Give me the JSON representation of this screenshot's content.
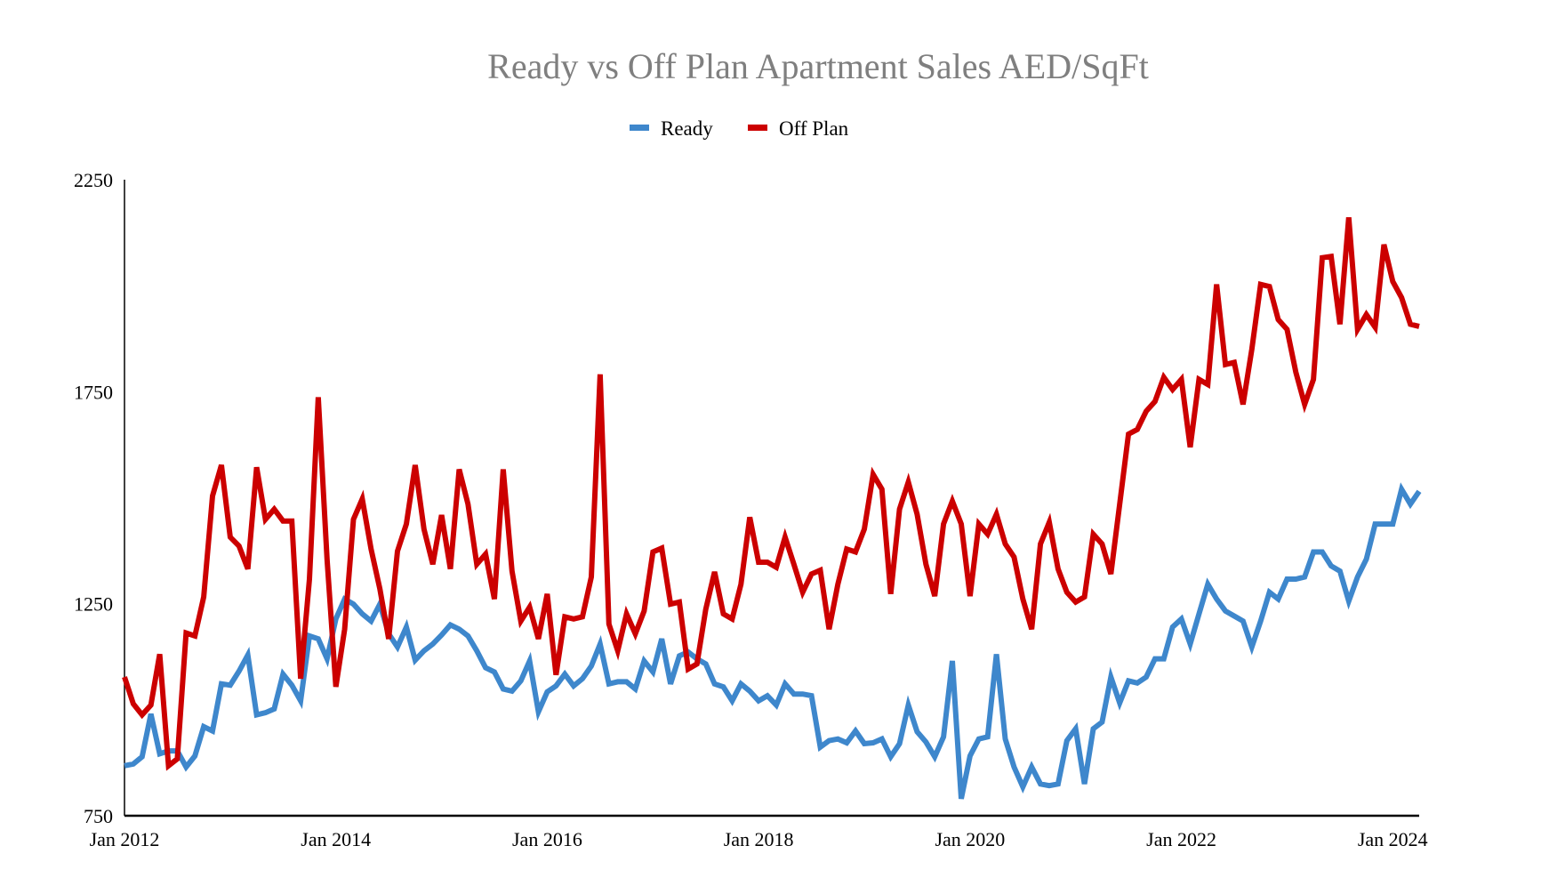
{
  "chart_data": {
    "type": "line",
    "title": "Ready vs Off Plan Apartment Sales AED/SqFt",
    "xlabel": "",
    "ylabel": "",
    "x_start": "Jan 2012",
    "x_frequency": "monthly",
    "x_tick_labels": [
      "Jan 2012",
      "Jan 2014",
      "Jan 2016",
      "Jan 2018",
      "Jan 2020",
      "Jan 2022",
      "Jan 2024"
    ],
    "x_tick_month_index": [
      0,
      24,
      48,
      72,
      96,
      120,
      144
    ],
    "x_range_months": [
      0,
      147
    ],
    "y_tick_labels": [
      "750",
      "1250",
      "1750",
      "2250"
    ],
    "y_ticks": [
      750,
      1250,
      1750,
      2250
    ],
    "ylim": [
      750,
      2250
    ],
    "grid": false,
    "legend_position": "top-center",
    "series": [
      {
        "name": "Ready",
        "color": "#3e87cc",
        "values": [
          868,
          872,
          889,
          990,
          896,
          903,
          903,
          865,
          891,
          960,
          950,
          1061,
          1058,
          1091,
          1129,
          988,
          993,
          1002,
          1084,
          1058,
          1021,
          1174,
          1167,
          1120,
          1214,
          1261,
          1249,
          1226,
          1209,
          1249,
          1179,
          1148,
          1195,
          1117,
          1139,
          1155,
          1176,
          1200,
          1190,
          1174,
          1139,
          1099,
          1089,
          1049,
          1044,
          1068,
          1115,
          995,
          1042,
          1056,
          1084,
          1056,
          1073,
          1103,
          1155,
          1061,
          1066,
          1066,
          1049,
          1115,
          1089,
          1167,
          1061,
          1127,
          1136,
          1120,
          1108,
          1061,
          1054,
          1021,
          1061,
          1044,
          1021,
          1033,
          1011,
          1061,
          1037,
          1037,
          1033,
          912,
          927,
          931,
          922,
          950,
          920,
          922,
          931,
          889,
          920,
          1011,
          948,
          924,
          889,
          936,
          1115,
          790,
          891,
          931,
          936,
          1131,
          931,
          865,
          818,
          865,
          825,
          821,
          825,
          927,
          955,
          825,
          955,
          971,
          1077,
          1016,
          1068,
          1063,
          1077,
          1120,
          1120,
          1195,
          1214,
          1155,
          1226,
          1296,
          1261,
          1233,
          1221,
          1209,
          1148,
          1209,
          1277,
          1261,
          1308,
          1308,
          1313,
          1372,
          1372,
          1339,
          1327,
          1256,
          1313,
          1355,
          1438,
          1438,
          1438,
          1520,
          1485,
          1515
        ]
      },
      {
        "name": "Off Plan",
        "color": "#cc0000",
        "values": [
          1077,
          1014,
          988,
          1011,
          1131,
          868,
          884,
          1181,
          1174,
          1266,
          1504,
          1577,
          1407,
          1386,
          1332,
          1572,
          1449,
          1473,
          1445,
          1445,
          1073,
          1308,
          1737,
          1355,
          1054,
          1190,
          1449,
          1497,
          1379,
          1285,
          1167,
          1374,
          1438,
          1577,
          1426,
          1343,
          1459,
          1332,
          1567,
          1485,
          1343,
          1367,
          1261,
          1567,
          1327,
          1209,
          1242,
          1167,
          1273,
          1082,
          1219,
          1214,
          1219,
          1313,
          1791,
          1202,
          1139,
          1226,
          1179,
          1233,
          1372,
          1381,
          1249,
          1254,
          1096,
          1108,
          1237,
          1325,
          1226,
          1214,
          1296,
          1454,
          1348,
          1348,
          1336,
          1407,
          1343,
          1277,
          1320,
          1329,
          1190,
          1296,
          1379,
          1372,
          1426,
          1555,
          1520,
          1273,
          1473,
          1537,
          1461,
          1343,
          1268,
          1438,
          1492,
          1438,
          1268,
          1438,
          1414,
          1461,
          1391,
          1360,
          1261,
          1190,
          1391,
          1442,
          1332,
          1277,
          1254,
          1266,
          1414,
          1391,
          1320,
          1485,
          1650,
          1661,
          1704,
          1727,
          1784,
          1755,
          1779,
          1619,
          1779,
          1767,
          2003,
          1814,
          1819,
          1720,
          1850,
          2003,
          1998,
          1920,
          1897,
          1796,
          1720,
          1779,
          2066,
          2069,
          1909,
          2161,
          1897,
          1932,
          1902,
          2097,
          2010,
          1972,
          1909,
          1904
        ]
      }
    ]
  }
}
